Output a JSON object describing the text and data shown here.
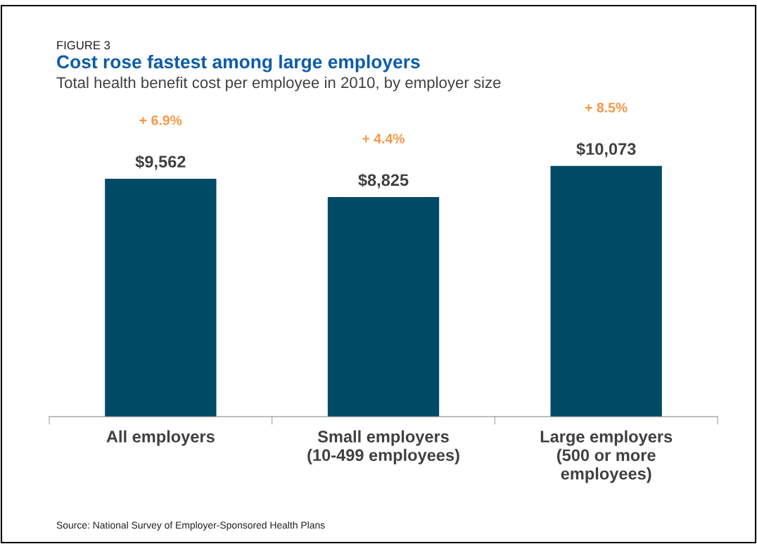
{
  "chart_data": {
    "type": "bar",
    "title": "Cost rose fastest among large employers",
    "subtitle": "Total health benefit cost per employee in 2010, by employer size",
    "categories": [
      "All employers",
      "Small employers\n(10-499 employees)",
      "Large employers\n(500 or more\nemployees)"
    ],
    "values": [
      9562,
      8825,
      10073
    ],
    "value_labels": [
      "$9,562",
      "$8,825",
      "$10,073"
    ],
    "color": "#014a66",
    "annotations": [
      "FIGURE 3",
      "+ 6.9%",
      "+ 4.4%",
      "+ 8.5%",
      "Source: National Survey of Employer-Sponsored Health Plans"
    ],
    "grid": false,
    "legend": false
  }
}
